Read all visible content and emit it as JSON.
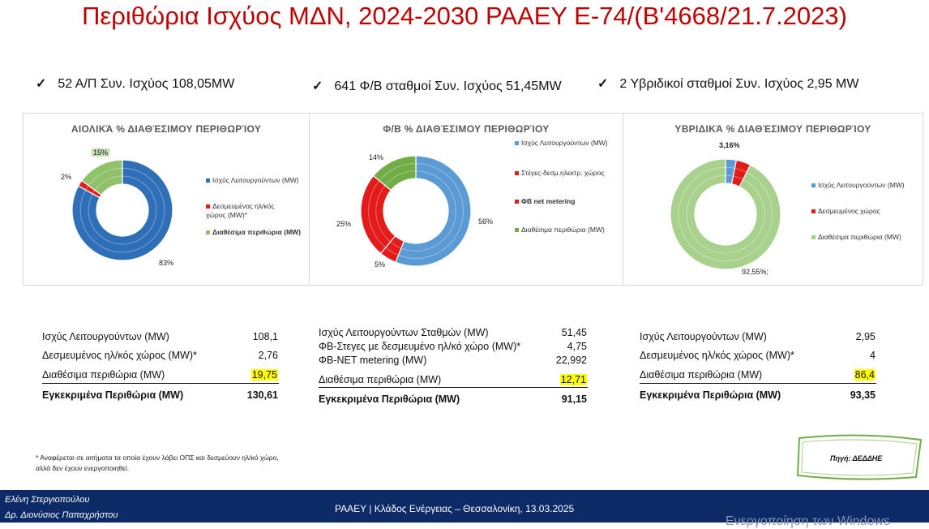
{
  "title": "Περιθώρια Ισχύος ΜΔΝ, 2024-2030 ΡΑΑΕΥ Ε-74/(Β'4668/21.7.2023)",
  "summary": [
    {
      "check": "✓",
      "text": "52 Α/Π Συν. Ισχύος 108,05MW"
    },
    {
      "check": "✓",
      "text": "641 Φ/Β σταθμοί  Συν. Ισχύος 51,45MW"
    },
    {
      "check": "✓",
      "text": "2 Υβριδικοί σταθμοί  Συν. Ισχύος 2,95 MW"
    }
  ],
  "colors": {
    "title": "#c00000",
    "blue": "#2e6fb7",
    "red": "#e31b1b",
    "green": "#8fc26b",
    "footer": "#0b2a66",
    "highlight": "#ffff00"
  },
  "chart_data": [
    {
      "type": "pie",
      "title": "ΑΙΟΛΙΚΆ % ΔΙΑΘΈΣΙΜΟΥ ΠΕΡΙΘΩΡΊΟΥ",
      "categories": [
        "Ισχύς Λειτουργούντων (MW)",
        "Δεσμευμένος ηλ/κός χώρος (MW)*",
        "Διαθέσιμα περιθώρια (MW)"
      ],
      "values": [
        83,
        2,
        15
      ],
      "data_labels": [
        "83%",
        "2%",
        "15%"
      ],
      "colors": [
        "#2e6fb7",
        "#e31b1b",
        "#8fc26b"
      ],
      "legend_position": "right"
    },
    {
      "type": "pie",
      "title": "Φ/Β % ΔΙΑΘΈΣΙΜΟΥ ΠΕΡΙΘΩΡΊΟΥ",
      "categories": [
        "Ισχύς Λειτουργούντων (MW)",
        "Στέγες-δεσμ.ηλεκτρ. χώρος",
        "ΦΒ net metering",
        "Διαθέσιμα περιθώρια (MW)"
      ],
      "values": [
        56,
        5,
        25,
        14
      ],
      "data_labels": [
        "56%",
        "5%",
        "25%",
        "14%"
      ],
      "colors": [
        "#5b9bd5",
        "#e31b1b",
        "#e31b1b",
        "#70ad47"
      ],
      "legend_position": "right"
    },
    {
      "type": "pie",
      "title": "ΥΒΡΙΔΙΚΆ % ΔΙΑΘΈΣΙΜΟΥ ΠΕΡΙΘΩΡΊΟΥ",
      "categories": [
        "Ισχύς Λειτουργούντων (MW)",
        "Δεσμευμένος χώρος",
        "Διαθέσιμα περιθώρια (MW)"
      ],
      "values": [
        3.16,
        4.29,
        92.55
      ],
      "data_labels": [
        "3,16%",
        "",
        "92,55%;"
      ],
      "colors": [
        "#5b9bd5",
        "#e31b1b",
        "#a9d18e"
      ],
      "legend_position": "right"
    }
  ],
  "tables": [
    {
      "rows": [
        {
          "label": "Ισχύς Λειτουργούντων (MW)",
          "value": "108,1"
        },
        {
          "label": "Δεσμευμένος ηλ/κός χώρος (MW)*",
          "value": "2,76"
        },
        {
          "label": "Διαθέσιμα περιθώρια (MW)",
          "value": "19,75"
        }
      ],
      "total_label": "Εγκεκριμένα Περιθώρια (MW)",
      "total_value": "130,61"
    },
    {
      "rows": [
        {
          "label": "Ισχύς Λειτουργούντων Σταθμών (MW)",
          "value": "51,45"
        },
        {
          "label": "ΦΒ-Στεγες με δεσμευμένο ηλ/κό χώρο (MW)*",
          "value": "4,75"
        },
        {
          "label": "ΦΒ-ΝΕΤ metering (MW)",
          "value": "22,992"
        },
        {
          "label": "Διαθέσιμα περιθώρια (MW)",
          "value": "12,71"
        }
      ],
      "total_label": "Εγκεκριμένα Περιθώρια (MW)",
      "total_value": "91,15"
    },
    {
      "rows": [
        {
          "label": "Ισχύς Λειτουργούντων (MW)",
          "value": "2,95"
        },
        {
          "label": "Δεσμευμένος ηλ/κός χώρος (MW)*",
          "value": "4"
        },
        {
          "label": "Διαθέσιμα περιθώρια (MW)",
          "value": "86,4"
        }
      ],
      "total_label": "Εγκεκριμένα Περιθώρια (MW)",
      "total_value": "93,35"
    }
  ],
  "footnote": [
    "* Αναφέρεται σε αιτήματα τα οποία έχουν λάβει ΟΠΣ και δεσμεύουν ηλ/κό χώρο,",
    "αλλά δεν έχουν ενεργοποιηθεί."
  ],
  "source": "Πηγή: ΔΕΔΔΗΕ",
  "footer": {
    "name1": "Ελένη Στεργιοπούλου",
    "name2": "Δρ. Διονύσιος Παπαχρήστου",
    "center": "ΡΑΑΕΥ | Κλάδος Ενέργειας – Θεσσαλονίκη, 13.03.2025",
    "watermark": "Ενεργοποίηση των Windows"
  }
}
